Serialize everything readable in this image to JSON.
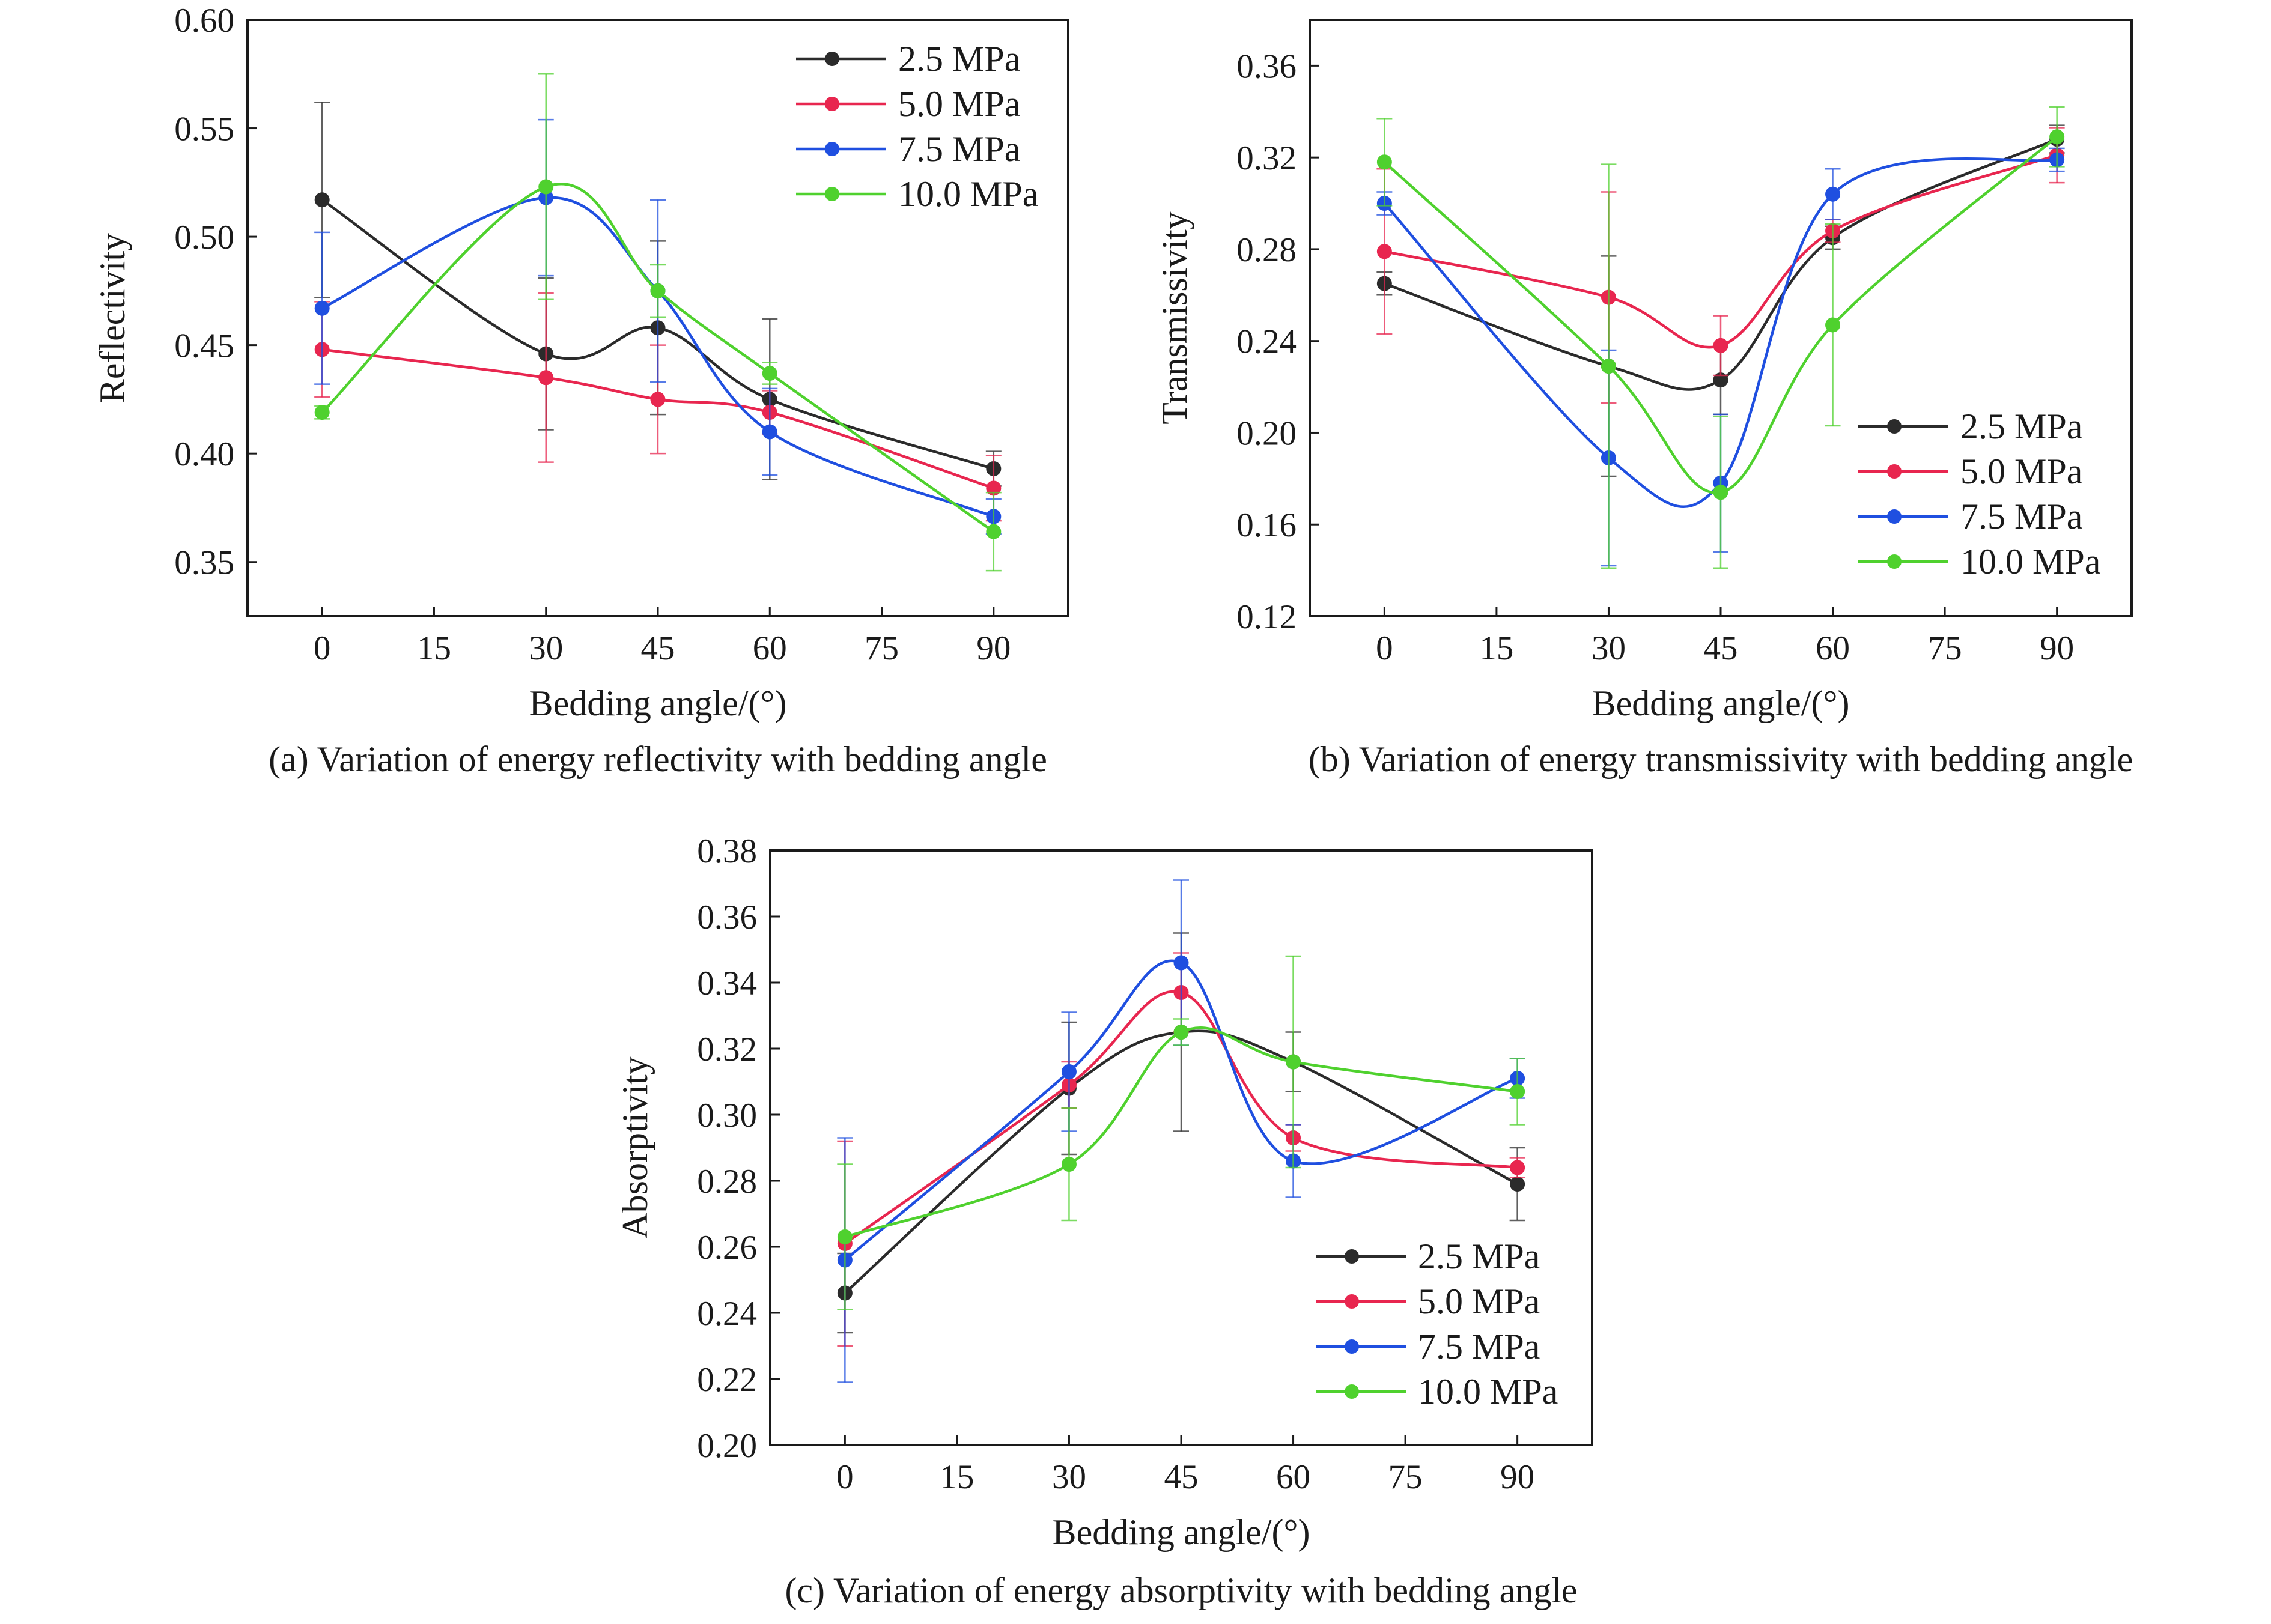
{
  "series_colors": {
    "2.5 MPa": "#2b2b2b",
    "5.0 MPa": "#e8264f",
    "7.5 MPa": "#1f4fe0",
    "10.0 MPa": "#4fd12e"
  },
  "chart_data": [
    {
      "type": "line",
      "caption": "(a) Variation of energy reflectivity with bedding angle",
      "xlabel": "Bedding angle/(°)",
      "ylabel": "Reflectivity",
      "xlim": [
        -10,
        100
      ],
      "ylim": [
        0.325,
        0.6
      ],
      "xticks": [
        0,
        15,
        30,
        45,
        60,
        75,
        90
      ],
      "yticks": [
        0.35,
        0.4,
        0.45,
        0.5,
        0.55,
        0.6
      ],
      "ytick_labels": [
        "0.35",
        "0.40",
        "0.45",
        "0.50",
        "0.55",
        "0.60"
      ],
      "legend_position": "top-right",
      "x": [
        0,
        30,
        45,
        60,
        90
      ],
      "series": [
        {
          "name": "2.5 MPa",
          "values": [
            0.517,
            0.446,
            0.458,
            0.425,
            0.393
          ],
          "errors": [
            0.045,
            0.035,
            0.04,
            0.037,
            0.008
          ]
        },
        {
          "name": "5.0 MPa",
          "values": [
            0.448,
            0.435,
            0.425,
            0.419,
            0.384
          ],
          "errors": [
            0.022,
            0.039,
            0.025,
            0.01,
            0.015
          ]
        },
        {
          "name": "7.5 MPa",
          "values": [
            0.467,
            0.518,
            0.475,
            0.41,
            0.371
          ],
          "errors": [
            0.035,
            0.036,
            0.042,
            0.02,
            0.008
          ]
        },
        {
          "name": "10.0 MPa",
          "values": [
            0.419,
            0.523,
            0.475,
            0.437,
            0.364
          ],
          "errors": [
            0.003,
            0.052,
            0.012,
            0.005,
            0.018
          ]
        }
      ]
    },
    {
      "type": "line",
      "caption": "(b) Variation of energy transmissivity with bedding angle",
      "xlabel": "Bedding angle/(°)",
      "ylabel": "Transmissivity",
      "xlim": [
        -10,
        100
      ],
      "ylim": [
        0.12,
        0.38
      ],
      "xticks": [
        0,
        15,
        30,
        45,
        60,
        75,
        90
      ],
      "yticks": [
        0.12,
        0.16,
        0.2,
        0.24,
        0.28,
        0.32,
        0.36
      ],
      "ytick_labels": [
        "0.12",
        "0.16",
        "0.20",
        "0.24",
        "0.28",
        "0.32",
        "0.36"
      ],
      "legend_position": "bottom-right",
      "x": [
        0,
        30,
        45,
        60,
        90
      ],
      "series": [
        {
          "name": "2.5 MPa",
          "values": [
            0.265,
            0.229,
            0.223,
            0.285,
            0.328
          ],
          "errors": [
            0.005,
            0.048,
            0.015,
            0.005,
            0.006
          ]
        },
        {
          "name": "5.0 MPa",
          "values": [
            0.279,
            0.259,
            0.238,
            0.288,
            0.321
          ],
          "errors": [
            0.036,
            0.046,
            0.013,
            0.005,
            0.012
          ]
        },
        {
          "name": "7.5 MPa",
          "values": [
            0.3,
            0.189,
            0.178,
            0.304,
            0.319
          ],
          "errors": [
            0.005,
            0.047,
            0.03,
            0.011,
            0.005
          ]
        },
        {
          "name": "10.0 MPa",
          "values": [
            0.318,
            0.229,
            0.174,
            0.247,
            0.329
          ],
          "errors": [
            0.019,
            0.088,
            0.033,
            0.044,
            0.013
          ]
        }
      ]
    },
    {
      "type": "line",
      "caption": "(c) Variation of energy absorptivity with bedding angle",
      "xlabel": "Bedding angle/(°)",
      "ylabel": "Absorptivity",
      "xlim": [
        -10,
        100
      ],
      "ylim": [
        0.2,
        0.38
      ],
      "xticks": [
        0,
        15,
        30,
        45,
        60,
        75,
        90
      ],
      "yticks": [
        0.2,
        0.22,
        0.24,
        0.26,
        0.28,
        0.3,
        0.32,
        0.34,
        0.36,
        0.38
      ],
      "ytick_labels": [
        "0.20",
        "0.22",
        "0.24",
        "0.26",
        "0.28",
        "0.30",
        "0.32",
        "0.34",
        "0.36",
        "0.38"
      ],
      "legend_position": "bottom-right",
      "x": [
        0,
        30,
        45,
        60,
        90
      ],
      "series": [
        {
          "name": "2.5 MPa",
          "values": [
            0.246,
            0.308,
            0.325,
            0.316,
            0.279
          ],
          "errors": [
            0.012,
            0.02,
            0.03,
            0.009,
            0.011
          ]
        },
        {
          "name": "5.0 MPa",
          "values": [
            0.261,
            0.309,
            0.337,
            0.293,
            0.284
          ],
          "errors": [
            0.031,
            0.007,
            0.012,
            0.004,
            0.003
          ]
        },
        {
          "name": "7.5 MPa",
          "values": [
            0.256,
            0.313,
            0.346,
            0.286,
            0.311
          ],
          "errors": [
            0.037,
            0.018,
            0.025,
            0.011,
            0.006
          ]
        },
        {
          "name": "10.0 MPa",
          "values": [
            0.263,
            0.285,
            0.325,
            0.316,
            0.307
          ],
          "errors": [
            0.022,
            0.017,
            0.004,
            0.032,
            0.01
          ]
        }
      ]
    }
  ]
}
